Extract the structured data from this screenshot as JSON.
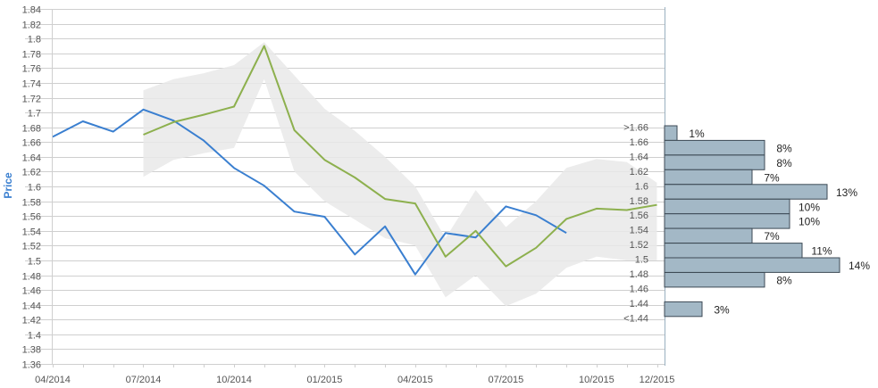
{
  "chart_data": {
    "type": "line",
    "ylabel": "Price",
    "ylim": [
      1.36,
      1.84
    ],
    "y_ticks": [
      "1.36",
      "1.38",
      "1.4",
      "1.42",
      "1.44",
      "1.46",
      "1.48",
      "1.5",
      "1.52",
      "1.54",
      "1.56",
      "1.58",
      "1.6",
      "1.62",
      "1.64",
      "1.66",
      "1.68",
      "1.7",
      "1.72",
      "1.74",
      "1.76",
      "1.78",
      "1.8",
      "1.82",
      "1.84"
    ],
    "x_ticks": [
      "04/2014",
      "07/2014",
      "10/2014",
      "01/2015",
      "04/2015",
      "07/2015",
      "10/2015",
      "12/2015"
    ],
    "grid": true,
    "colors": {
      "actual": "#3a7fd0",
      "forecast": "#8db04e",
      "band": "#e9e9e9",
      "bars": "#a3b8c6",
      "axis_label": "#3a7fd0"
    },
    "series": [
      {
        "x": [
          "2014-04",
          "2014-05",
          "2014-06",
          "2014-07",
          "2014-08",
          "2014-09",
          "2014-10",
          "2014-11",
          "2014-12",
          "2015-01",
          "2015-02",
          "2015-03",
          "2015-04",
          "2015-05",
          "2015-06",
          "2015-07",
          "2015-08",
          "2015-09"
        ],
        "values": [
          1.667,
          1.688,
          1.674,
          1.704,
          1.689,
          1.662,
          1.625,
          1.601,
          1.566,
          1.559,
          1.508,
          1.546,
          1.481,
          1.537,
          1.531,
          1.573,
          1.561,
          1.537
        ]
      },
      {
        "x": [
          "2014-07",
          "2014-08",
          "2014-09",
          "2014-10",
          "2014-11",
          "2014-12",
          "2015-01",
          "2015-02",
          "2015-03",
          "2015-04",
          "2015-05",
          "2015-06",
          "2015-07",
          "2015-08",
          "2015-09",
          "2015-10",
          "2015-11",
          "2015-12"
        ],
        "values": [
          1.67,
          1.687,
          1.697,
          1.708,
          1.79,
          1.676,
          1.636,
          1.612,
          1.583,
          1.577,
          1.505,
          1.54,
          1.492,
          1.517,
          1.556,
          1.57,
          1.568,
          1.575
        ]
      }
    ],
    "band": {
      "x": [
        "2014-07",
        "2014-08",
        "2014-09",
        "2014-10",
        "2014-11",
        "2014-12",
        "2015-01",
        "2015-02",
        "2015-03",
        "2015-04",
        "2015-05",
        "2015-06",
        "2015-07",
        "2015-08",
        "2015-09",
        "2015-10",
        "2015-11",
        "2015-12"
      ],
      "upper": [
        1.73,
        1.745,
        1.753,
        1.764,
        1.795,
        1.75,
        1.705,
        1.675,
        1.64,
        1.6,
        1.53,
        1.595,
        1.545,
        1.58,
        1.625,
        1.637,
        1.633,
        1.605
      ],
      "lower": [
        1.613,
        1.636,
        1.645,
        1.652,
        1.745,
        1.62,
        1.58,
        1.555,
        1.53,
        1.52,
        1.45,
        1.48,
        1.438,
        1.455,
        1.49,
        1.505,
        1.5,
        1.5
      ]
    },
    "histogram": {
      "bins": [
        {
          "label": ">1.66",
          "percent": 1,
          "value_label": "1%"
        },
        {
          "label": "1.66",
          "percent": 8,
          "value_label": "8%"
        },
        {
          "label": "1.64",
          "percent": 8,
          "value_label": "8%"
        },
        {
          "label": "1.62",
          "percent": 7,
          "value_label": "7%"
        },
        {
          "label": "1.6",
          "percent": 13,
          "value_label": "13%"
        },
        {
          "label": "1.58",
          "percent": 10,
          "value_label": "10%"
        },
        {
          "label": "1.56",
          "percent": 10,
          "value_label": "10%"
        },
        {
          "label": "1.54",
          "percent": 7,
          "value_label": "7%"
        },
        {
          "label": "1.52",
          "percent": 11,
          "value_label": "11%"
        },
        {
          "label": "1.5",
          "percent": 14,
          "value_label": "14%"
        },
        {
          "label": "1.48",
          "percent": 8,
          "value_label": "8%"
        },
        {
          "label": "1.46",
          "percent": 0,
          "value_label": ""
        },
        {
          "label": "1.44",
          "percent": 3,
          "value_label": "3%"
        },
        {
          "label": "<1.44",
          "percent": 0,
          "value_label": ""
        }
      ]
    }
  }
}
